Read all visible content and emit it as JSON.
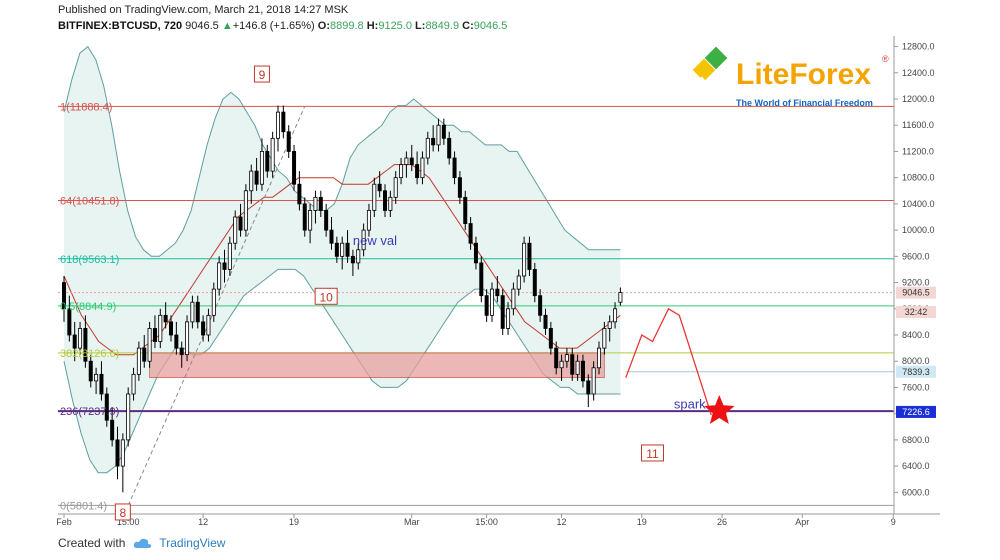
{
  "header": {
    "published": "Published on TradingView.com, March 21, 2018 14:27 MSK",
    "symbol": "BITFINEX:BTCUSD, 720",
    "last": "9046.5",
    "change": "+146.8 (+1.65%)",
    "o_label": "O:",
    "o": "8899.8",
    "h_label": "H:",
    "h": "9125.0",
    "l_label": "L:",
    "l": "8849.9",
    "c_label": "C:",
    "c": "9046.5"
  },
  "logo": {
    "name": "LiteForex",
    "reg": "®",
    "tagline": "The World of Financial Freedom"
  },
  "footer": {
    "created_with": "Created with",
    "brand": "TradingView"
  },
  "colors": {
    "bull": "#ffffff",
    "bear": "#000000",
    "band": "#5f9ea0",
    "band_fill": "#e4f3f1",
    "ma": "#c0392b",
    "fib_red": "#d9534f",
    "fib_green": "#2ecc71",
    "fib_teal": "#1abc9c",
    "fib_olive": "#b8c93a",
    "fib_purple": "#5b2c83",
    "rect": "#e8a0a0"
  },
  "chart_data": {
    "type": "candlestick",
    "y_range": [
      5700,
      12900
    ],
    "y_ticks": [
      "12800.0",
      "12400.0",
      "12000.0",
      "11600.0",
      "11200.0",
      "10800.0",
      "10400.0",
      "10000.0",
      "9600.0",
      "9200.0",
      "8800.0",
      "8400.0",
      "8000.0",
      "7600.0",
      "7200.0",
      "6800.0",
      "6400.0",
      "6000.0"
    ],
    "x_ticks": [
      {
        "i": 0,
        "label": "Feb"
      },
      {
        "i": 12,
        "label": "15:00"
      },
      {
        "i": 26,
        "label": "12"
      },
      {
        "i": 43,
        "label": "19"
      },
      {
        "i": 65,
        "label": "Mar"
      },
      {
        "i": 79,
        "label": "15:00"
      },
      {
        "i": 93,
        "label": "12"
      },
      {
        "i": 108,
        "label": "19"
      },
      {
        "i": 123,
        "label": "26"
      },
      {
        "i": 138,
        "label": "Apr"
      },
      {
        "i": 155,
        "label": "9"
      }
    ],
    "fib_levels": [
      {
        "label": "1(11888.4)",
        "value": 11888.4,
        "color": "fib_red"
      },
      {
        "label": "64(10451.8)",
        "value": 10451.8,
        "color": "fib_red"
      },
      {
        "label": "618(9563.1)",
        "value": 9563.1,
        "color": "fib_teal"
      },
      {
        "label": "0.5(8844.9)",
        "value": 8844.9,
        "color": "fib_green"
      },
      {
        "label": "382(8126.6)",
        "value": 8126.6,
        "color": "fib_olive"
      },
      {
        "label": "236(7237.9)",
        "value": 7237.9,
        "color": "fib_purple"
      },
      {
        "label": "0(5801.4)",
        "value": 5801.4,
        "color": "fib_gray"
      }
    ],
    "price_labels": [
      {
        "text": "9046.5",
        "value": 9046.5,
        "bg": "#f2d7d5",
        "fg": "#333"
      },
      {
        "text": "32:42",
        "value": 8750,
        "bg": "#f2d7d5",
        "fg": "#333"
      },
      {
        "text": "7839.3",
        "value": 7839.3,
        "bg": "#cfe8f3",
        "fg": "#333"
      },
      {
        "text": "7226.6",
        "value": 7226.6,
        "bg": "#1a2fd8",
        "fg": "#fff"
      }
    ],
    "annotations": [
      {
        "text": "9",
        "i": 37,
        "v": 12350,
        "boxed": true
      },
      {
        "text": "10",
        "i": 49,
        "v": 8960,
        "boxed": true
      },
      {
        "text": "11",
        "i": 110,
        "v": 6570,
        "boxed": true
      },
      {
        "text": "8",
        "i": 11,
        "v": 5670,
        "boxed": true
      },
      {
        "text": "new val",
        "i": 54,
        "v": 9770,
        "boxed": false
      },
      {
        "text": "spark",
        "i": 114,
        "v": 7280,
        "boxed": false
      }
    ],
    "candles": [
      [
        9200,
        9300,
        8600,
        8800
      ],
      [
        8800,
        9000,
        8300,
        8400
      ],
      [
        8400,
        8600,
        8000,
        8200
      ],
      [
        8200,
        8600,
        8100,
        8500
      ],
      [
        8500,
        8700,
        7900,
        8000
      ],
      [
        8000,
        8100,
        7600,
        7700
      ],
      [
        7700,
        7900,
        7500,
        7800
      ],
      [
        7800,
        8000,
        7400,
        7500
      ],
      [
        7500,
        7600,
        7000,
        7100
      ],
      [
        7100,
        7300,
        6700,
        6800
      ],
      [
        6800,
        7000,
        6200,
        6400
      ],
      [
        6400,
        6900,
        6000,
        6800
      ],
      [
        6800,
        7600,
        6700,
        7500
      ],
      [
        7500,
        7900,
        7400,
        7800
      ],
      [
        7800,
        8300,
        7700,
        8200
      ],
      [
        8200,
        8400,
        7900,
        8000
      ],
      [
        8000,
        8600,
        7900,
        8500
      ],
      [
        8500,
        8700,
        8200,
        8300
      ],
      [
        8300,
        8800,
        8200,
        8700
      ],
      [
        8700,
        8900,
        8500,
        8600
      ],
      [
        8600,
        8700,
        8300,
        8400
      ],
      [
        8400,
        8600,
        8100,
        8200
      ],
      [
        8200,
        8300,
        7900,
        8100
      ],
      [
        8100,
        8700,
        8000,
        8600
      ],
      [
        8600,
        9000,
        8500,
        8900
      ],
      [
        8900,
        9000,
        8500,
        8600
      ],
      [
        8600,
        8700,
        8300,
        8400
      ],
      [
        8400,
        8800,
        8300,
        8700
      ],
      [
        8700,
        9200,
        8600,
        9100
      ],
      [
        9100,
        9600,
        9000,
        9500
      ],
      [
        9500,
        9700,
        9200,
        9400
      ],
      [
        9400,
        9900,
        9300,
        9800
      ],
      [
        9800,
        10300,
        9700,
        10200
      ],
      [
        10200,
        10400,
        9900,
        10000
      ],
      [
        10000,
        10700,
        9900,
        10600
      ],
      [
        10600,
        11000,
        10400,
        10900
      ],
      [
        10900,
        11100,
        10600,
        10700
      ],
      [
        10700,
        11400,
        10600,
        11200
      ],
      [
        11200,
        11300,
        10800,
        10900
      ],
      [
        10900,
        11500,
        10800,
        11400
      ],
      [
        11400,
        11900,
        11200,
        11800
      ],
      [
        11800,
        11900,
        11400,
        11500
      ],
      [
        11500,
        11600,
        11100,
        11200
      ],
      [
        11200,
        11300,
        10600,
        10700
      ],
      [
        10700,
        10900,
        10300,
        10400
      ],
      [
        10400,
        10500,
        9900,
        10000
      ],
      [
        10000,
        10400,
        9800,
        10300
      ],
      [
        10300,
        10600,
        10100,
        10500
      ],
      [
        10500,
        10600,
        10200,
        10300
      ],
      [
        10300,
        10400,
        9900,
        10000
      ],
      [
        10000,
        10200,
        9700,
        9800
      ],
      [
        9800,
        9900,
        9500,
        9600
      ],
      [
        9600,
        9900,
        9400,
        9800
      ],
      [
        9800,
        10000,
        9500,
        9600
      ],
      [
        9600,
        9700,
        9300,
        9500
      ],
      [
        9500,
        9800,
        9400,
        9700
      ],
      [
        9700,
        10100,
        9600,
        10000
      ],
      [
        10000,
        10400,
        9900,
        10300
      ],
      [
        10300,
        10800,
        10200,
        10700
      ],
      [
        10700,
        10900,
        10500,
        10600
      ],
      [
        10600,
        10700,
        10200,
        10300
      ],
      [
        10300,
        10600,
        10200,
        10500
      ],
      [
        10500,
        10900,
        10400,
        10800
      ],
      [
        10800,
        11100,
        10700,
        11000
      ],
      [
        11000,
        11200,
        10800,
        11100
      ],
      [
        11100,
        11300,
        10900,
        11000
      ],
      [
        11000,
        11200,
        10700,
        10800
      ],
      [
        10800,
        11200,
        10700,
        11100
      ],
      [
        11100,
        11500,
        11000,
        11400
      ],
      [
        11400,
        11600,
        11200,
        11300
      ],
      [
        11300,
        11700,
        11200,
        11600
      ],
      [
        11600,
        11700,
        11300,
        11400
      ],
      [
        11400,
        11500,
        11000,
        11100
      ],
      [
        11100,
        11200,
        10700,
        10800
      ],
      [
        10800,
        10900,
        10400,
        10500
      ],
      [
        10500,
        10600,
        10000,
        10100
      ],
      [
        10100,
        10200,
        9700,
        9800
      ],
      [
        9800,
        9900,
        9400,
        9500
      ],
      [
        9500,
        9600,
        8900,
        9000
      ],
      [
        9000,
        9100,
        8600,
        8700
      ],
      [
        8700,
        9200,
        8600,
        9100
      ],
      [
        9100,
        9300,
        8900,
        9000
      ],
      [
        9000,
        9100,
        8400,
        8500
      ],
      [
        8500,
        8900,
        8400,
        8800
      ],
      [
        8800,
        9200,
        8700,
        9100
      ],
      [
        9100,
        9400,
        9000,
        9300
      ],
      [
        9300,
        9900,
        9200,
        9800
      ],
      [
        9800,
        9900,
        9300,
        9400
      ],
      [
        9400,
        9500,
        8900,
        9000
      ],
      [
        9000,
        9100,
        8600,
        8700
      ],
      [
        8700,
        8800,
        8400,
        8500
      ],
      [
        8500,
        8600,
        8100,
        8200
      ],
      [
        8200,
        8300,
        7800,
        7900
      ],
      [
        7900,
        8100,
        7700,
        8000
      ],
      [
        8000,
        8200,
        7900,
        8100
      ],
      [
        8100,
        8200,
        7700,
        7800
      ],
      [
        7800,
        8100,
        7700,
        8000
      ],
      [
        8000,
        8100,
        7600,
        7700
      ],
      [
        7700,
        7800,
        7300,
        7500
      ],
      [
        7500,
        8000,
        7400,
        7900
      ],
      [
        7900,
        8300,
        7800,
        8200
      ],
      [
        8200,
        8600,
        8100,
        8500
      ],
      [
        8500,
        8700,
        8300,
        8600
      ],
      [
        8600,
        8900,
        8500,
        8800
      ],
      [
        8899.8,
        9125,
        8849.9,
        9046.5
      ]
    ],
    "upper_band": [
      11800,
      12300,
      12700,
      12800,
      12600,
      12200,
      11600,
      10900,
      10300,
      9900,
      9700,
      9600,
      9600,
      9700,
      9800,
      10000,
      10300,
      10800,
      11300,
      11700,
      12000,
      12100,
      12000,
      11800,
      11600,
      11300,
      11100,
      10900,
      10800,
      10600,
      10500,
      10400,
      10300,
      10300,
      10400,
      10700,
      11100,
      11300,
      11400,
      11500,
      11600,
      11800,
      11900,
      11900,
      12000,
      11900,
      11800,
      11700,
      11600,
      11600,
      11500,
      11500,
      11400,
      11300,
      11300,
      11300,
      11200,
      11200,
      11000,
      10800,
      10600,
      10400,
      10200,
      10000,
      9900,
      9800,
      9700,
      9700,
      9700,
      9700,
      9700
    ],
    "lower_band": [
      8000,
      7400,
      6900,
      6500,
      6300,
      6300,
      6400,
      6600,
      6900,
      7200,
      7500,
      7800,
      8000,
      8200,
      8200,
      8100,
      8100,
      8200,
      8400,
      8600,
      8800,
      9000,
      9100,
      9200,
      9300,
      9400,
      9400,
      9400,
      9300,
      9100,
      8900,
      8700,
      8500,
      8300,
      8100,
      7900,
      7700,
      7600,
      7600,
      7600,
      7700,
      7900,
      8100,
      8300,
      8500,
      8700,
      8900,
      9000,
      9100,
      9100,
      9000,
      8800,
      8600,
      8400,
      8200,
      8000,
      7800,
      7700,
      7600,
      7600,
      7500,
      7500,
      7500,
      7500,
      7500,
      7500
    ],
    "mid_band": [
      9300,
      9000,
      8700,
      8500,
      8300,
      8200,
      8100,
      8100,
      8100,
      8200,
      8300,
      8400,
      8600,
      8800,
      9000,
      9200,
      9400,
      9600,
      9800,
      10000,
      10200,
      10300,
      10400,
      10500,
      10500,
      10600,
      10700,
      10800,
      10800,
      10800,
      10800,
      10800,
      10700,
      10700,
      10700,
      10700,
      10800,
      10900,
      11000,
      11000,
      11000,
      10900,
      10800,
      10600,
      10400,
      10200,
      10000,
      9800,
      9600,
      9400,
      9200,
      9000,
      8800,
      8600,
      8500,
      8400,
      8300,
      8200,
      8200,
      8200,
      8300,
      8400,
      8500,
      8600,
      8700
    ],
    "zone_rect": {
      "i0": 16,
      "i1": 101,
      "v0": 8126.6,
      "v1": 7750
    },
    "projection": [
      [
        105,
        7750
      ],
      [
        108,
        8400
      ],
      [
        110,
        8300
      ],
      [
        113,
        8800
      ],
      [
        115,
        8700
      ],
      [
        121,
        7180
      ]
    ]
  }
}
